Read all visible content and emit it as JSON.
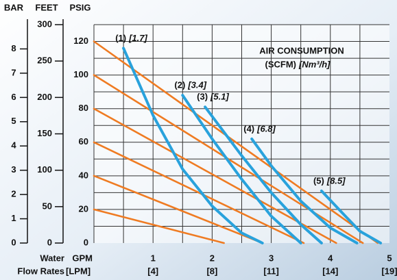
{
  "chart_data": {
    "type": "line",
    "axis_titles": {
      "bar": "BAR",
      "feet": "FEET",
      "psig": "PSIG"
    },
    "bar_lim": [
      0,
      9
    ],
    "bar_ticks": [
      0,
      1,
      2,
      3,
      4,
      5,
      6,
      7,
      8
    ],
    "feet_lim": [
      0,
      300
    ],
    "feet_ticks": [
      0,
      50,
      100,
      150,
      200,
      250,
      300
    ],
    "ylim": [
      0,
      130
    ],
    "yticks": [
      0,
      20,
      40,
      60,
      80,
      100,
      120
    ],
    "ygrid": [
      10,
      20,
      30,
      40,
      50,
      60,
      70,
      80,
      90,
      100,
      110,
      120,
      130
    ],
    "xlim": [
      0,
      5
    ],
    "xticks": [
      1,
      2,
      3,
      4,
      5
    ],
    "xgrid": [
      0.5,
      1,
      1.5,
      2,
      2.5,
      3,
      3.5,
      4,
      4.5
    ],
    "x_sub_labels": [
      "[4]",
      "[8]",
      "[11]",
      "[14]",
      "[19]"
    ],
    "x_label": "GPM",
    "x_sub_label": "[LPM]",
    "flow_label_1": "Water",
    "flow_label_2": "Flow Rates",
    "annotation": {
      "title": "AIR CONSUMPTION",
      "units": "(SCFM)",
      "units_metric": "[Nm³/h]"
    },
    "pressure_lines": [
      {
        "color": "#ef7b22",
        "x": [
          0,
          4.8
        ],
        "values": [
          120,
          0
        ]
      },
      {
        "color": "#ef7b22",
        "x": [
          0,
          4.55
        ],
        "values": [
          100,
          0
        ]
      },
      {
        "color": "#ef7b22",
        "x": [
          0,
          4.1
        ],
        "values": [
          80,
          0
        ]
      },
      {
        "color": "#ef7b22",
        "x": [
          0,
          3.55
        ],
        "values": [
          60,
          0
        ]
      },
      {
        "color": "#ef7b22",
        "x": [
          0,
          2.85
        ],
        "values": [
          40,
          0
        ]
      },
      {
        "color": "#ef7b22",
        "x": [
          0,
          2.2
        ],
        "values": [
          20,
          0
        ]
      }
    ],
    "air_curves": [
      {
        "label": "(1)",
        "label_metric": "[1.7]",
        "color": "#29a2dc",
        "x": [
          0.5,
          1.0,
          1.5,
          2.0,
          2.5,
          2.85
        ],
        "values": [
          116,
          76,
          44,
          22,
          6,
          0
        ]
      },
      {
        "label": "(2)",
        "label_metric": "[3.4]",
        "color": "#29a2dc",
        "x": [
          1.5,
          2.0,
          2.5,
          3.0,
          3.5
        ],
        "values": [
          88,
          62,
          38,
          16,
          0
        ]
      },
      {
        "label": "(3)",
        "label_metric": "[5.1]",
        "color": "#29a2dc",
        "x": [
          1.88,
          2.5,
          3.0,
          3.5,
          3.85
        ],
        "values": [
          81,
          52,
          30,
          11,
          0
        ]
      },
      {
        "label": "(4)",
        "label_metric": "[6.8]",
        "color": "#29a2dc",
        "x": [
          2.67,
          3.0,
          3.5,
          4.0,
          4.45
        ],
        "values": [
          62,
          46,
          25,
          9,
          0
        ]
      },
      {
        "label": "(5)",
        "label_metric": "[8.5]",
        "color": "#29a2dc",
        "x": [
          3.85,
          4.2,
          4.5,
          4.85
        ],
        "values": [
          31,
          18,
          7,
          0
        ]
      }
    ]
  }
}
